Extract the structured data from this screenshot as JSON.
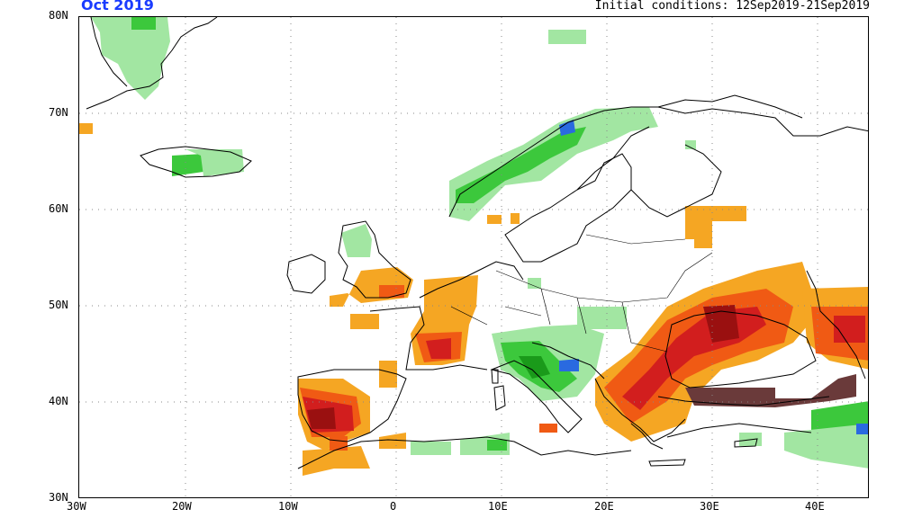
{
  "header": {
    "month_label": "Oct 2019",
    "initial_conditions": "Initial conditions: 12Sep2019-21Sep2019"
  },
  "axes": {
    "lat_labels": [
      "80N",
      "70N",
      "60N",
      "50N",
      "40N",
      "30N"
    ],
    "lon_labels": [
      "30W",
      "20W",
      "10W",
      "0",
      "10E",
      "20E",
      "30E",
      "40E"
    ]
  },
  "colors": {
    "light_green": "#a2e6a2",
    "green": "#3cc83c",
    "dark_green": "#1a9a1a",
    "blue": "#2a6ae0",
    "orange": "#f5a623",
    "red_orange": "#f05a14",
    "red": "#d21e1e",
    "dark_red": "#9a1010",
    "brown": "#6a3a3a",
    "coast": "#000000",
    "grid": "#888888"
  }
}
